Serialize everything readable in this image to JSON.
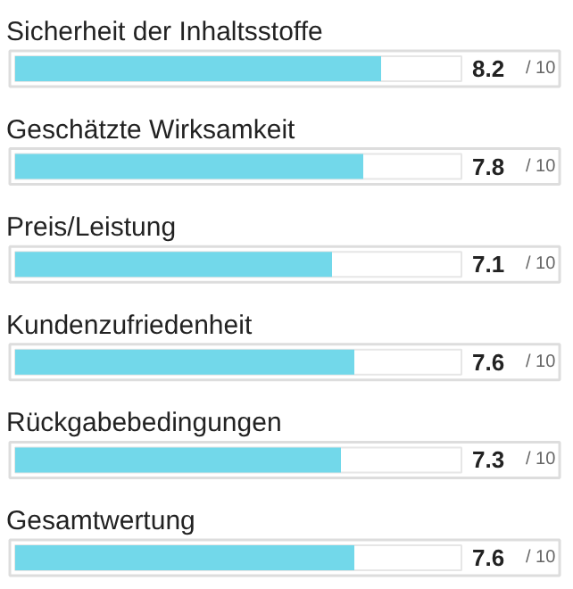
{
  "chart_data": {
    "type": "bar",
    "orientation": "horizontal",
    "categories": [
      "Sicherheit der Inhaltsstoffe",
      "Geschätzte Wirksamkeit",
      "Preis/Leistung",
      "Kundenzufriedenheit",
      "Rückgabebedingungen",
      "Gesamtwertung"
    ],
    "values": [
      8.2,
      7.8,
      7.1,
      7.6,
      7.3,
      7.6
    ],
    "data_labels": true,
    "annotations": [
      "/ 10",
      "/ 10",
      "/ 10",
      "/ 10",
      "/ 10",
      "/ 10"
    ],
    "xlim": [
      0,
      10
    ],
    "color": "#72d8ea"
  }
}
